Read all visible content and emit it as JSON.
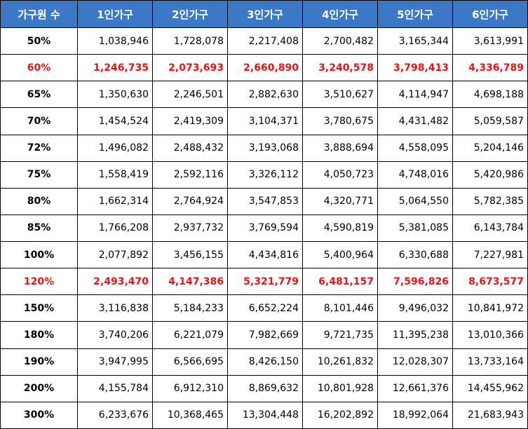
{
  "colors": {
    "header_bg": "#3b78c8",
    "header_text": "#ffffff",
    "highlight_text": "#ee1111",
    "body_text": "#000000"
  },
  "table": {
    "headers": [
      "가구원 수",
      "1인가구",
      "2인가구",
      "3인가구",
      "4인가구",
      "5인가구",
      "6인가구"
    ],
    "rows": [
      {
        "label": "50%",
        "highlight": false,
        "values": [
          "1,038,946",
          "1,728,078",
          "2,217,408",
          "2,700,482",
          "3,165,344",
          "3,613,991"
        ]
      },
      {
        "label": "60%",
        "highlight": true,
        "values": [
          "1,246,735",
          "2,073,693",
          "2,660,890",
          "3,240,578",
          "3,798,413",
          "4,336,789"
        ]
      },
      {
        "label": "65%",
        "highlight": false,
        "values": [
          "1,350,630",
          "2,246,501",
          "2,882,630",
          "3,510,627",
          "4,114,947",
          "4,698,188"
        ]
      },
      {
        "label": "70%",
        "highlight": false,
        "values": [
          "1,454,524",
          "2,419,309",
          "3,104,371",
          "3,780,675",
          "4,431,482",
          "5,059,587"
        ]
      },
      {
        "label": "72%",
        "highlight": false,
        "values": [
          "1,496,082",
          "2,488,432",
          "3,193,068",
          "3,888,694",
          "4,558,095",
          "5,204,146"
        ]
      },
      {
        "label": "75%",
        "highlight": false,
        "values": [
          "1,558,419",
          "2,592,116",
          "3,326,112",
          "4,050,723",
          "4,748,016",
          "5,420,986"
        ]
      },
      {
        "label": "80%",
        "highlight": false,
        "values": [
          "1,662,314",
          "2,764,924",
          "3,547,853",
          "4,320,771",
          "5,064,550",
          "5,782,385"
        ]
      },
      {
        "label": "85%",
        "highlight": false,
        "values": [
          "1,766,208",
          "2,937,732",
          "3,769,594",
          "4,590,819",
          "5,381,085",
          "6,143,784"
        ]
      },
      {
        "label": "100%",
        "highlight": false,
        "values": [
          "2,077,892",
          "3,456,155",
          "4,434,816",
          "5,400,964",
          "6,330,688",
          "7,227,981"
        ]
      },
      {
        "label": "120%",
        "highlight": true,
        "values": [
          "2,493,470",
          "4,147,386",
          "5,321,779",
          "6,481,157",
          "7,596,826",
          "8,673,577"
        ]
      },
      {
        "label": "150%",
        "highlight": false,
        "values": [
          "3,116,838",
          "5,184,233",
          "6,652,224",
          "8,101,446",
          "9,496,032",
          "10,841,972"
        ]
      },
      {
        "label": "180%",
        "highlight": false,
        "values": [
          "3,740,206",
          "6,221,079",
          "7,982,669",
          "9,721,735",
          "11,395,238",
          "13,010,366"
        ]
      },
      {
        "label": "190%",
        "highlight": false,
        "values": [
          "3,947,995",
          "6,566,695",
          "8,426,150",
          "10,261,832",
          "12,028,307",
          "13,733,164"
        ]
      },
      {
        "label": "200%",
        "highlight": false,
        "values": [
          "4,155,784",
          "6,912,310",
          "8,869,632",
          "10,801,928",
          "12,661,376",
          "14,455,962"
        ]
      },
      {
        "label": "300%",
        "highlight": false,
        "values": [
          "6,233,676",
          "10,368,465",
          "13,304,448",
          "16,202,892",
          "18,992,064",
          "21,683,943"
        ]
      }
    ]
  }
}
